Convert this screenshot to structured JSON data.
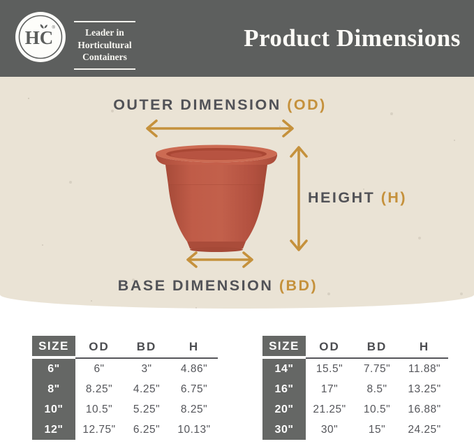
{
  "header": {
    "logo": {
      "text": "HC",
      "registered": "®"
    },
    "tagline_lines": [
      "Leader in",
      "Horticultural",
      "Containers"
    ],
    "title": "Product Dimensions"
  },
  "diagram": {
    "outer_dimension_label": "OUTER DIMENSION ",
    "outer_dimension_abbr": "(OD)",
    "height_label": "HEIGHT ",
    "height_abbr": "(H)",
    "base_dimension_label": "BASE DIMENSION ",
    "base_dimension_abbr": "(BD)"
  },
  "tables": [
    {
      "headers": [
        "SIZE",
        "OD",
        "BD",
        "H"
      ],
      "rows": [
        {
          "size": "6\"",
          "od": "6\"",
          "bd": "3\"",
          "h": "4.86\""
        },
        {
          "size": "8\"",
          "od": "8.25\"",
          "bd": "4.25\"",
          "h": "6.75\""
        },
        {
          "size": "10\"",
          "od": "10.5\"",
          "bd": "5.25\"",
          "h": "8.25\""
        },
        {
          "size": "12\"",
          "od": "12.75\"",
          "bd": "6.25\"",
          "h": "10.13\""
        }
      ]
    },
    {
      "headers": [
        "SIZE",
        "OD",
        "BD",
        "H"
      ],
      "rows": [
        {
          "size": "14\"",
          "od": "15.5\"",
          "bd": "7.75\"",
          "h": "11.88\""
        },
        {
          "size": "16\"",
          "od": "17\"",
          "bd": "8.5\"",
          "h": "13.25\""
        },
        {
          "size": "20\"",
          "od": "21.25\"",
          "bd": "10.5\"",
          "h": "16.88\""
        },
        {
          "size": "30\"",
          "od": "30\"",
          "bd": "15\"",
          "h": "24.25\""
        }
      ]
    }
  ],
  "colors": {
    "header_bg": "#5d5f5e",
    "hero_bg": "#eae3d5",
    "accent_gold": "#c5913c",
    "terracotta": "#bd5846",
    "table_strip": "#656765",
    "text_dark": "#515257"
  }
}
